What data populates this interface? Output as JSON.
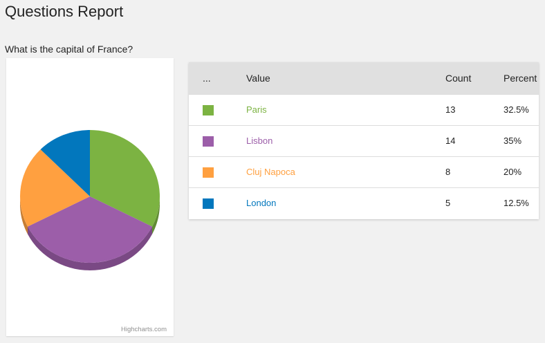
{
  "page": {
    "title": "Questions Report"
  },
  "question": {
    "text": "What is the capital of France?"
  },
  "table": {
    "headers": {
      "swatch": "...",
      "value": "Value",
      "count": "Count",
      "percent": "Percent"
    },
    "rows": [
      {
        "value": "Paris",
        "count": "13",
        "percent": "32.5%",
        "color": "#7cb342"
      },
      {
        "value": "Lisbon",
        "count": "14",
        "percent": "35%",
        "color": "#9c5ea9"
      },
      {
        "value": "Cluj Napoca",
        "count": "8",
        "percent": "20%",
        "color": "#ffa040"
      },
      {
        "value": "London",
        "count": "5",
        "percent": "12.5%",
        "color": "#0277bd"
      }
    ]
  },
  "chart_data": {
    "type": "pie",
    "categories": [
      "Paris",
      "Lisbon",
      "Cluj Napoca",
      "London"
    ],
    "values": [
      13,
      14,
      8,
      5
    ],
    "colors": [
      "#7cb342",
      "#9c5ea9",
      "#ffa040",
      "#0277bd"
    ],
    "three_d": true,
    "credits": "Highcharts.com"
  }
}
